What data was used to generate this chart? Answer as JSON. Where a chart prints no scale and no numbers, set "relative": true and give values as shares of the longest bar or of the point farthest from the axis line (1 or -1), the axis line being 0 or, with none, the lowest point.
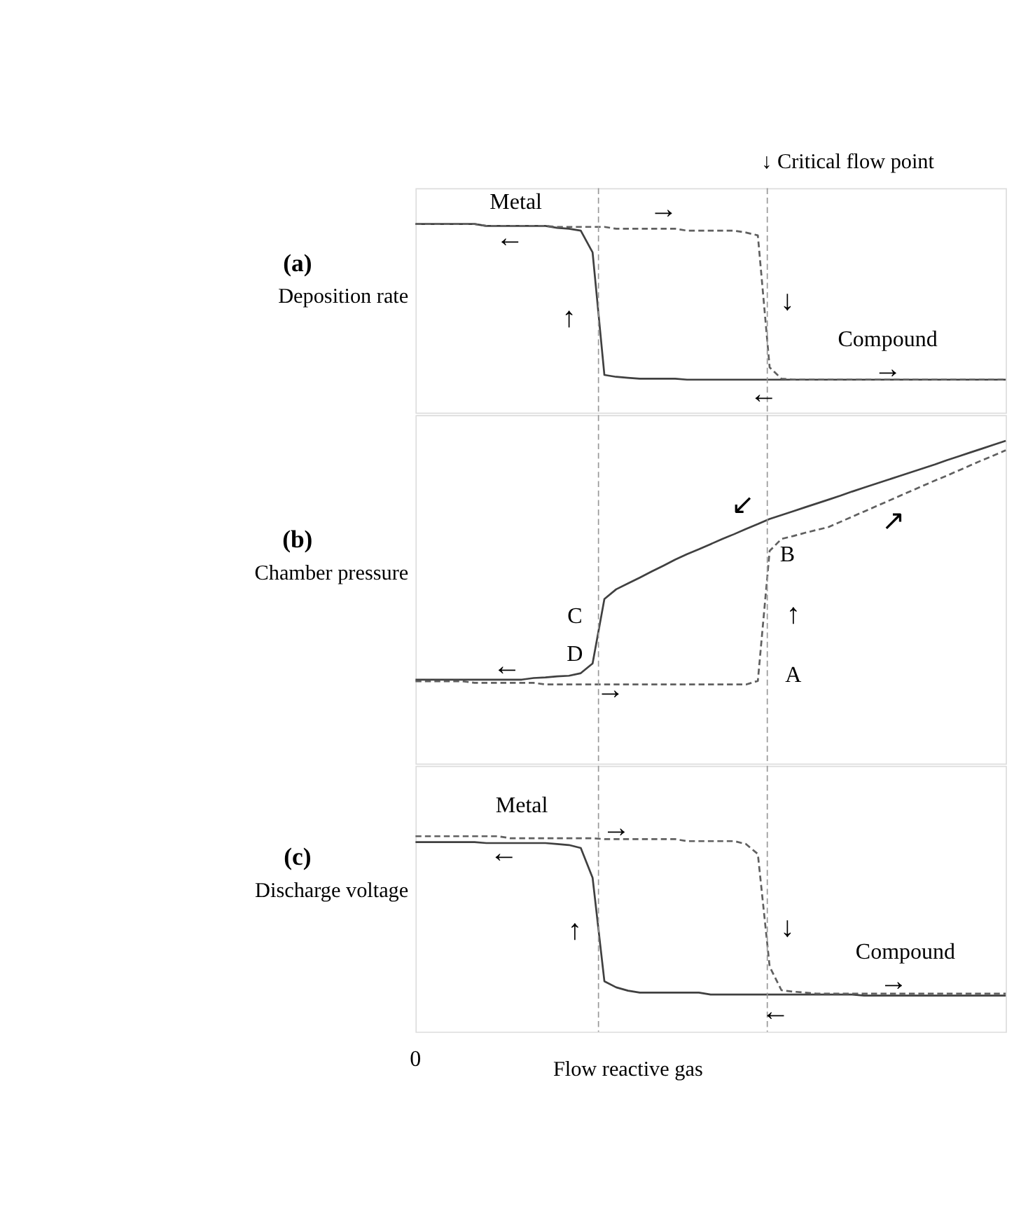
{
  "chart_data": [
    {
      "type": "line",
      "relative": true,
      "title": "(a)",
      "ylabel": "Deposition rate",
      "tick_labels": false,
      "categories": [
        null,
        null,
        null,
        null,
        null,
        null,
        null,
        null,
        null,
        null,
        null,
        null,
        null,
        null,
        null,
        null,
        null,
        null,
        null,
        null,
        null,
        null,
        null,
        null,
        null,
        null,
        null,
        null,
        null,
        null,
        null,
        null,
        null,
        null,
        null,
        null,
        null,
        null,
        null,
        null,
        null,
        null,
        null,
        null,
        null,
        null,
        null,
        null,
        null,
        null,
        null
      ],
      "series": [
        {
          "color": "#404040",
          "line_style": "solid",
          "values": [
            1.0,
            1.0,
            1.0,
            1.0,
            1.0,
            1.0,
            0.99,
            0.99,
            0.99,
            0.99,
            0.99,
            0.99,
            0.98,
            0.975,
            0.965,
            0.85,
            0.2,
            0.19,
            0.185,
            0.18,
            0.18,
            0.18,
            0.18,
            0.175,
            0.175,
            0.175,
            0.175,
            0.175,
            0.175,
            0.175,
            0.175,
            0.175,
            0.175,
            0.175,
            0.175,
            0.175,
            0.175,
            0.175,
            0.175,
            0.175,
            0.175,
            0.175,
            0.175,
            0.175,
            0.175,
            0.175,
            0.175,
            0.175,
            0.175,
            0.175,
            0.175
          ]
        },
        {
          "color": "#606060",
          "line_style": "dashed",
          "values": [
            1.0,
            1.0,
            1.0,
            1.0,
            1.0,
            1.0,
            0.99,
            0.99,
            0.99,
            0.99,
            0.99,
            0.99,
            0.985,
            0.985,
            0.985,
            0.985,
            0.985,
            0.975,
            0.975,
            0.975,
            0.975,
            0.975,
            0.975,
            0.965,
            0.965,
            0.965,
            0.965,
            0.965,
            0.955,
            0.94,
            0.24,
            0.18,
            0.175,
            0.175,
            0.175,
            0.175,
            0.175,
            0.175,
            0.175,
            0.175,
            0.175,
            0.175,
            0.175,
            0.175,
            0.175,
            0.175,
            0.175,
            0.175,
            0.175,
            0.175,
            0.175
          ]
        }
      ],
      "annotations": [
        "↓ Critical flow point",
        "Metal",
        "→",
        "←",
        "↑",
        "↓",
        "Compound",
        "→",
        "←"
      ]
    },
    {
      "type": "line",
      "relative": true,
      "title": "(b)",
      "ylabel": "Chamber pressure",
      "tick_labels": false,
      "categories": [
        null,
        null,
        null,
        null,
        null,
        null,
        null,
        null,
        null,
        null,
        null,
        null,
        null,
        null,
        null,
        null,
        null,
        null,
        null,
        null,
        null,
        null,
        null,
        null,
        null,
        null,
        null,
        null,
        null,
        null,
        null,
        null,
        null,
        null,
        null,
        null,
        null,
        null,
        null,
        null,
        null,
        null,
        null,
        null,
        null,
        null,
        null,
        null,
        null,
        null,
        null
      ],
      "series": [
        {
          "color": "#404040",
          "line_style": "solid",
          "values": [
            0.26,
            0.26,
            0.26,
            0.26,
            0.26,
            0.26,
            0.26,
            0.26,
            0.26,
            0.26,
            0.265,
            0.267,
            0.27,
            0.272,
            0.28,
            0.31,
            0.51,
            0.54,
            0.558,
            0.576,
            0.595,
            0.613,
            0.632,
            0.649,
            0.664,
            0.68,
            0.696,
            0.711,
            0.727,
            0.742,
            0.758,
            0.77,
            0.782,
            0.794,
            0.806,
            0.818,
            0.83,
            0.843,
            0.855,
            0.867,
            0.879,
            0.891,
            0.903,
            0.915,
            0.927,
            0.94,
            0.952,
            0.964,
            0.976,
            0.988,
            1.0
          ]
        },
        {
          "color": "#606060",
          "line_style": "dashed",
          "values": [
            0.255,
            0.255,
            0.255,
            0.255,
            0.255,
            0.25,
            0.25,
            0.25,
            0.25,
            0.25,
            0.25,
            0.245,
            0.245,
            0.245,
            0.245,
            0.245,
            0.245,
            0.245,
            0.245,
            0.245,
            0.245,
            0.245,
            0.245,
            0.245,
            0.245,
            0.245,
            0.245,
            0.245,
            0.245,
            0.256,
            0.659,
            0.696,
            0.705,
            0.715,
            0.724,
            0.733,
            0.749,
            0.765,
            0.781,
            0.797,
            0.813,
            0.829,
            0.845,
            0.861,
            0.877,
            0.892,
            0.908,
            0.924,
            0.94,
            0.955,
            0.971
          ]
        }
      ],
      "annotations": [
        "C",
        "D",
        "B",
        "A",
        "↑",
        "←",
        "→",
        "↙",
        "↗"
      ]
    },
    {
      "type": "line",
      "relative": true,
      "title": "(c)",
      "ylabel": "Discharge voltage",
      "xlabel": "Flow reactive gas",
      "tick_labels": false,
      "categories": [
        null,
        null,
        null,
        null,
        null,
        null,
        null,
        null,
        null,
        null,
        null,
        null,
        null,
        null,
        null,
        null,
        null,
        null,
        null,
        null,
        null,
        null,
        null,
        null,
        null,
        null,
        null,
        null,
        null,
        null,
        null,
        null,
        null,
        null,
        null,
        null,
        null,
        null,
        null,
        null,
        null,
        null,
        null,
        null,
        null,
        null,
        null,
        null,
        null,
        null,
        null
      ],
      "series": [
        {
          "color": "#404040",
          "line_style": "solid",
          "values": [
            0.97,
            0.97,
            0.97,
            0.97,
            0.97,
            0.97,
            0.965,
            0.965,
            0.965,
            0.965,
            0.965,
            0.965,
            0.96,
            0.955,
            0.94,
            0.788,
            0.258,
            0.227,
            0.21,
            0.2,
            0.2,
            0.2,
            0.2,
            0.2,
            0.2,
            0.19,
            0.19,
            0.19,
            0.19,
            0.19,
            0.19,
            0.19,
            0.19,
            0.19,
            0.19,
            0.19,
            0.19,
            0.19,
            0.185,
            0.185,
            0.185,
            0.185,
            0.185,
            0.185,
            0.185,
            0.185,
            0.185,
            0.185,
            0.185,
            0.185,
            0.185
          ]
        },
        {
          "color": "#606060",
          "line_style": "dashed",
          "values": [
            1.0,
            1.0,
            1.0,
            1.0,
            1.0,
            1.0,
            1.0,
            1.0,
            0.99,
            0.99,
            0.99,
            0.99,
            0.99,
            0.99,
            0.99,
            0.99,
            0.985,
            0.985,
            0.985,
            0.985,
            0.985,
            0.985,
            0.985,
            0.975,
            0.975,
            0.975,
            0.975,
            0.975,
            0.96,
            0.909,
            0.333,
            0.212,
            0.205,
            0.2,
            0.195,
            0.195,
            0.195,
            0.195,
            0.195,
            0.195,
            0.195,
            0.195,
            0.195,
            0.195,
            0.195,
            0.195,
            0.195,
            0.195,
            0.195,
            0.195,
            0.195
          ]
        }
      ],
      "annotations": [
        "Metal",
        "→",
        "←",
        "↑",
        "↓",
        "Compound",
        "→",
        "←",
        "0"
      ]
    }
  ]
}
